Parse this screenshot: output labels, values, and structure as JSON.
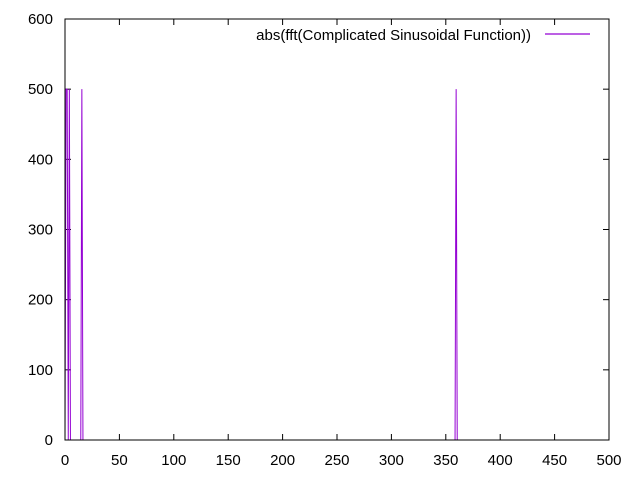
{
  "chart_data": {
    "type": "line",
    "xlim": [
      0,
      500
    ],
    "ylim": [
      0,
      600
    ],
    "x_ticks": [
      0,
      50,
      100,
      150,
      200,
      250,
      300,
      350,
      400,
      450,
      500
    ],
    "y_ticks": [
      0,
      100,
      200,
      300,
      400,
      500,
      600
    ],
    "grid": false,
    "legend_position": "top-right",
    "series": [
      {
        "name": "abs(fft(Complicated Sinusoidal Function))",
        "color": "#9400d3",
        "points": [
          [
            0,
            0
          ],
          [
            0.5,
            250
          ],
          [
            1,
            500
          ],
          [
            2,
            500
          ],
          [
            2.5,
            250
          ],
          [
            3,
            0
          ],
          [
            3.5,
            250
          ],
          [
            4,
            500
          ],
          [
            4.5,
            250
          ],
          [
            5,
            0
          ],
          [
            14.5,
            0
          ],
          [
            15,
            250
          ],
          [
            15.5,
            500
          ],
          [
            16,
            250
          ],
          [
            16.5,
            0
          ],
          [
            358.5,
            0
          ],
          [
            359,
            250
          ],
          [
            359.5,
            500
          ],
          [
            360,
            250
          ],
          [
            360.5,
            0
          ],
          [
            500,
            0
          ]
        ]
      }
    ]
  }
}
